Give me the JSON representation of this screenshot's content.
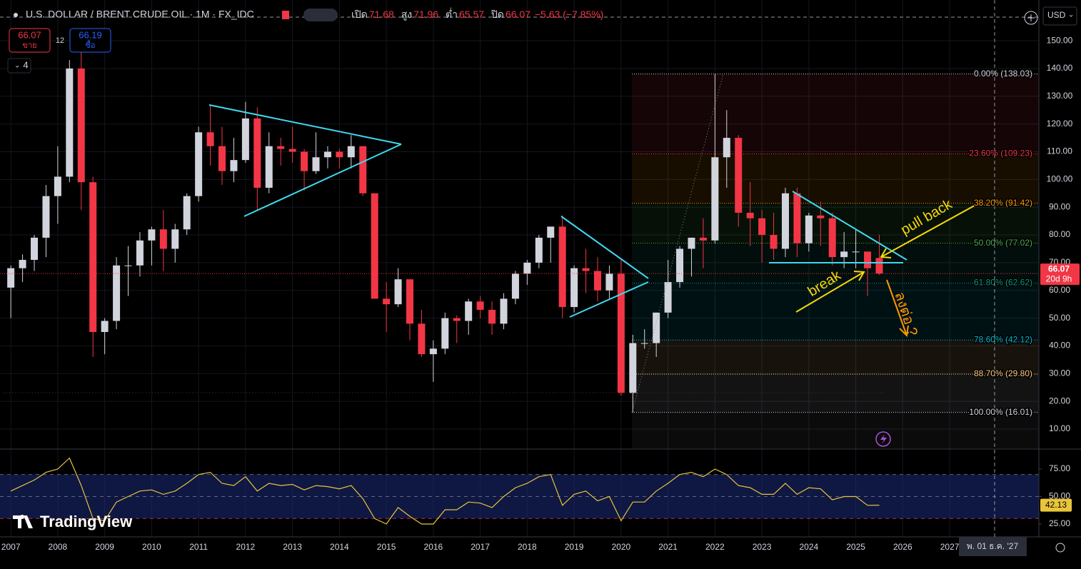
{
  "header": {
    "symbol": "U.S. DOLLAR / BRENT CRUDE OIL · 1M · FX_IDC",
    "open_label": "เปิด",
    "open": 71.68,
    "high_label": "สูง",
    "high": 71.96,
    "low_label": "ต่ำ",
    "low": 65.57,
    "close_label": "ปิด",
    "close": 66.07,
    "change": "−5.63 (−7.85%)"
  },
  "order_panel": {
    "sell_price": 66.07,
    "sell_label": "ขาย",
    "spread": 12,
    "buy_price": 66.19,
    "buy_label": "ซื้อ",
    "indicators": 4
  },
  "currency": "USD",
  "watermark": "TradingView",
  "crosshair_date": "พ. 01 ธ.ค. '27",
  "chart_data": [
    {
      "type": "candlestick",
      "up_color": "#d1d4dc",
      "down_color": "#f23645",
      "x": [
        2007,
        2007.25,
        2007.5,
        2007.75,
        2008,
        2008.25,
        2008.5,
        2008.75,
        2009,
        2009.25,
        2009.5,
        2009.75,
        2010,
        2010.25,
        2010.5,
        2010.75,
        2011,
        2011.25,
        2011.5,
        2011.75,
        2012,
        2012.25,
        2012.5,
        2012.75,
        2013,
        2013.25,
        2013.5,
        2013.75,
        2014,
        2014.25,
        2014.5,
        2014.75,
        2015,
        2015.25,
        2015.5,
        2015.75,
        2016,
        2016.25,
        2016.5,
        2016.75,
        2017,
        2017.25,
        2017.5,
        2017.75,
        2018,
        2018.25,
        2018.5,
        2018.75,
        2019,
        2019.25,
        2019.5,
        2019.75,
        2020,
        2020.25,
        2020.5,
        2020.75,
        2021,
        2021.25,
        2021.5,
        2021.75,
        2022,
        2022.25,
        2022.5,
        2022.75,
        2023,
        2023.25,
        2023.5,
        2023.75,
        2024,
        2024.25,
        2024.5,
        2024.75,
        2025,
        2025.25,
        2025.5
      ],
      "open": [
        61,
        68,
        71,
        79,
        94,
        101,
        140,
        99,
        45,
        49,
        69,
        69,
        78,
        82,
        75,
        82,
        94,
        117,
        112,
        103,
        107,
        122,
        97,
        112,
        111,
        110,
        103,
        108,
        110,
        108,
        112,
        95,
        57,
        55,
        64,
        48,
        37,
        39,
        50,
        49,
        56,
        53,
        48,
        57,
        66,
        70,
        79,
        83,
        54,
        68,
        67,
        60,
        66,
        23,
        41,
        41,
        52,
        63,
        75,
        79,
        78,
        108,
        115,
        88,
        86,
        80,
        75,
        95,
        77,
        87,
        86,
        72,
        74,
        74,
        71.68
      ],
      "high": [
        69,
        73,
        80,
        98,
        112,
        143,
        147,
        101,
        50,
        72,
        76,
        81,
        83,
        89,
        84,
        95,
        119,
        127,
        119,
        115,
        128,
        126,
        117,
        115,
        119,
        111,
        117,
        112,
        111,
        116,
        112,
        95,
        63,
        68,
        64,
        53,
        42,
        52,
        51,
        57,
        58,
        56,
        59,
        67,
        71,
        80,
        83,
        87,
        69,
        75,
        72,
        69,
        71,
        44,
        46,
        52,
        71,
        76,
        79,
        86,
        138,
        125,
        116,
        99,
        89,
        88,
        97,
        97,
        88,
        92,
        88,
        81,
        82,
        74,
        80
      ],
      "low": [
        50,
        63,
        67,
        72,
        84,
        99,
        89,
        36,
        37,
        46,
        58,
        65,
        69,
        67,
        70,
        80,
        92,
        105,
        98,
        99,
        106,
        89,
        95,
        105,
        106,
        96,
        102,
        104,
        104,
        104,
        94,
        57,
        45,
        54,
        42,
        36,
        27,
        37,
        41,
        44,
        50,
        44,
        46,
        55,
        62,
        68,
        70,
        50,
        52,
        59,
        56,
        57,
        22,
        16,
        39,
        36,
        50,
        61,
        65,
        68,
        77,
        97,
        83,
        76,
        70,
        71,
        72,
        72,
        74,
        76,
        69,
        68,
        68,
        58,
        65.57
      ],
      "close": [
        68,
        71,
        79,
        94,
        101,
        140,
        99,
        45,
        49,
        69,
        69,
        78,
        82,
        75,
        82,
        94,
        117,
        112,
        103,
        107,
        122,
        97,
        112,
        111,
        110,
        103,
        108,
        110,
        108,
        112,
        95,
        57,
        55,
        64,
        48,
        37,
        39,
        50,
        49,
        56,
        53,
        48,
        57,
        66,
        70,
        79,
        83,
        54,
        68,
        67,
        60,
        66,
        23,
        41,
        41,
        52,
        63,
        75,
        79,
        78,
        108,
        115,
        88,
        86,
        80,
        75,
        95,
        77,
        87,
        86,
        72,
        74,
        74,
        68,
        66.07
      ],
      "xlim": [
        2006.8,
        2028.9
      ],
      "xticks": [
        2007,
        2008,
        2009,
        2010,
        2011,
        2012,
        2013,
        2014,
        2015,
        2016,
        2017,
        2018,
        2019,
        2020,
        2021,
        2022,
        2023,
        2024,
        2025,
        2026,
        2027
      ],
      "ylim": [
        3.05,
        164.7
      ],
      "yticks": [
        {
          "value": 10,
          "label": "10.00"
        },
        {
          "value": 20,
          "label": "20.00"
        },
        {
          "value": 30,
          "label": "30.00"
        },
        {
          "value": 40,
          "label": "40.00"
        },
        {
          "value": 50,
          "label": "50.00"
        },
        {
          "value": 60,
          "label": "60.00"
        },
        {
          "value": 70,
          "label": "70.00"
        },
        {
          "value": 80,
          "label": "80.00"
        },
        {
          "value": 90,
          "label": "90.00"
        },
        {
          "value": 100,
          "label": "100.00"
        },
        {
          "value": 110,
          "label": "110.00"
        },
        {
          "value": 120,
          "label": "120.00"
        },
        {
          "value": 130,
          "label": "130.00"
        },
        {
          "value": 140,
          "label": "140.00"
        },
        {
          "value": 150,
          "label": "150.00"
        }
      ],
      "grid": true,
      "countdown": "20d 9h",
      "fib_levels": [
        {
          "value": 138.03,
          "label": "0.00% (138.03)",
          "color": "#d1d4dc"
        },
        {
          "value": 109.23,
          "label": "23.60% (109.23)",
          "color": "#f23645"
        },
        {
          "value": 91.42,
          "label": "38.20% (91.42)",
          "color": "#ff9800"
        },
        {
          "value": 77.02,
          "label": "50.00% (77.02)",
          "color": "#4caf50"
        },
        {
          "value": 62.62,
          "label": "61.80% (62.62)",
          "color": "#089981"
        },
        {
          "value": 42.12,
          "label": "78.60% (42.12)",
          "color": "#00bcd4"
        },
        {
          "value": 29.8,
          "label": "88.70% (29.80)",
          "color": "#ffcc80"
        },
        {
          "value": 16.01,
          "label": "100.00% (16.01)",
          "color": "#d1d4dc"
        }
      ],
      "annotations": [
        {
          "text": "pull back",
          "color": "#f5d90a"
        },
        {
          "text": "break",
          "color": "#f5d90a"
        },
        {
          "text": "ลงต่อ ?",
          "color": "#ff9800"
        }
      ]
    },
    {
      "type": "line",
      "color": "#e8c53a",
      "x": [
        2007,
        2007.25,
        2007.5,
        2007.75,
        2008,
        2008.25,
        2008.5,
        2008.75,
        2009,
        2009.25,
        2009.5,
        2009.75,
        2010,
        2010.25,
        2010.5,
        2010.75,
        2011,
        2011.25,
        2011.5,
        2011.75,
        2012,
        2012.25,
        2012.5,
        2012.75,
        2013,
        2013.25,
        2013.5,
        2013.75,
        2014,
        2014.25,
        2014.5,
        2014.75,
        2015,
        2015.25,
        2015.5,
        2015.75,
        2016,
        2016.25,
        2016.5,
        2016.75,
        2017,
        2017.25,
        2017.5,
        2017.75,
        2018,
        2018.25,
        2018.5,
        2018.75,
        2019,
        2019.25,
        2019.5,
        2019.75,
        2020,
        2020.25,
        2020.5,
        2020.75,
        2021,
        2021.25,
        2021.5,
        2021.75,
        2022,
        2022.25,
        2022.5,
        2022.75,
        2023,
        2023.25,
        2023.5,
        2023.75,
        2024,
        2024.25,
        2024.5,
        2024.75,
        2025,
        2025.25,
        2025.5
      ],
      "values": [
        55,
        60,
        65,
        72,
        75,
        85,
        60,
        30,
        28,
        45,
        50,
        55,
        56,
        52,
        55,
        62,
        70,
        72,
        62,
        60,
        68,
        55,
        62,
        60,
        61,
        56,
        60,
        59,
        57,
        60,
        48,
        30,
        25,
        40,
        32,
        25,
        25,
        38,
        38,
        45,
        44,
        40,
        50,
        58,
        62,
        68,
        70,
        42,
        52,
        55,
        46,
        50,
        28,
        45,
        45,
        55,
        62,
        70,
        72,
        68,
        75,
        70,
        60,
        58,
        52,
        52,
        62,
        52,
        58,
        57,
        47,
        50,
        50,
        42,
        42.13
      ],
      "ylim": [
        13.3,
        92.5
      ],
      "yticks": [
        {
          "value": 25,
          "label": "25.00"
        },
        {
          "value": 50,
          "label": "50.00"
        },
        {
          "value": 75,
          "label": "75.00"
        }
      ],
      "levels": [
        70,
        50,
        30
      ]
    }
  ]
}
